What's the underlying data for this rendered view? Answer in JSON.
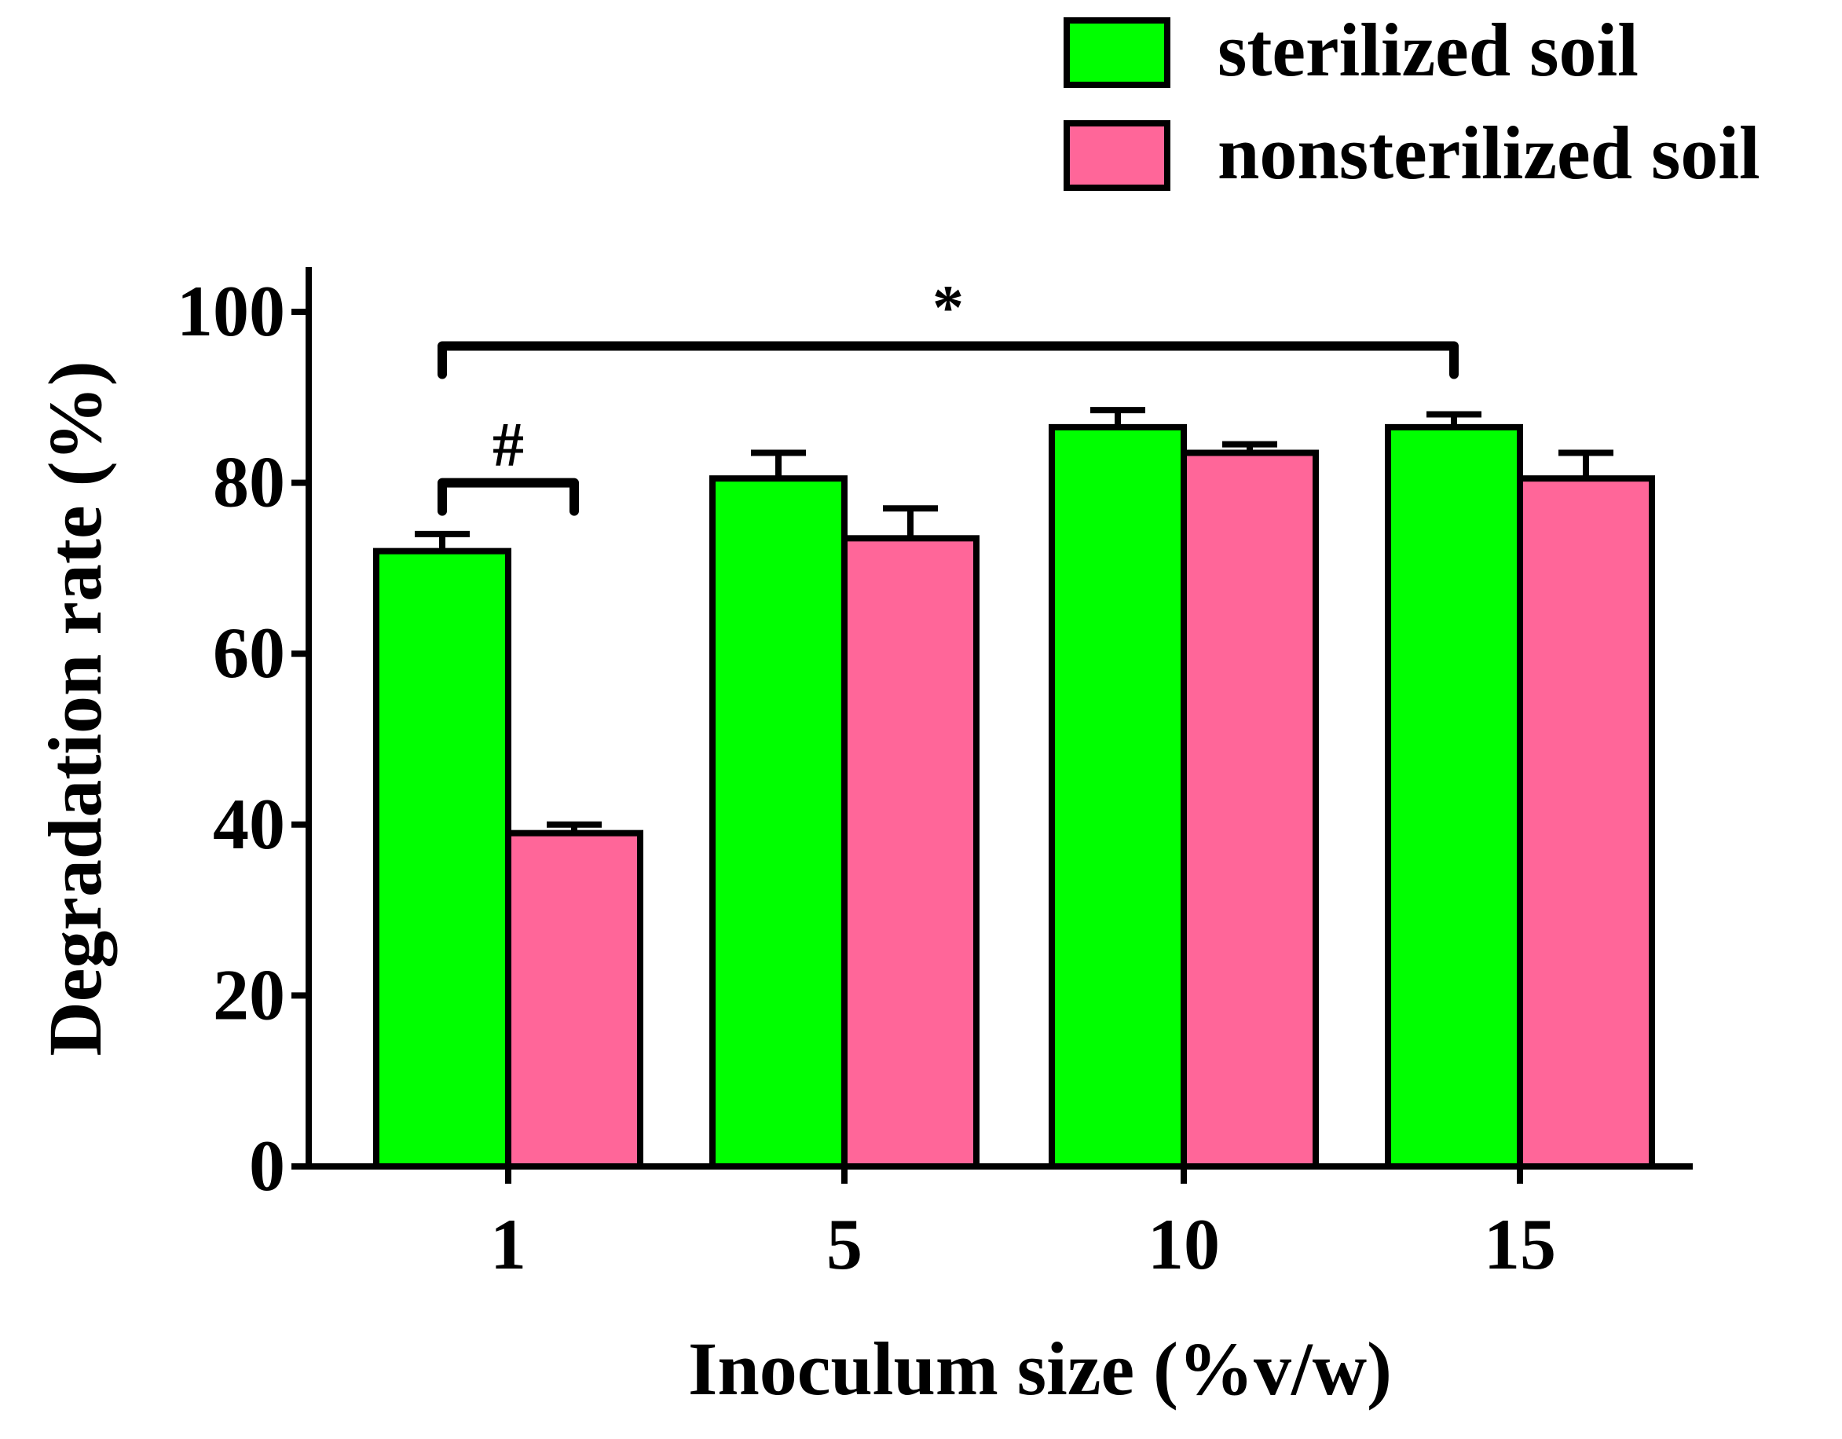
{
  "chart_data": {
    "type": "bar",
    "title": "",
    "xlabel": "Inoculum size (%v/w)",
    "ylabel": "Degradation rate (%)",
    "categories": [
      "1",
      "5",
      "10",
      "15"
    ],
    "ylim": [
      0,
      100
    ],
    "yticks": [
      0,
      20,
      40,
      60,
      80,
      100
    ],
    "grid": false,
    "legend_position": "top-right",
    "series": [
      {
        "name": "sterilized soil",
        "color": "#00ff00",
        "values": [
          72,
          80.5,
          86.5,
          86.5
        ],
        "errors": [
          2.0,
          3.0,
          2.0,
          1.5
        ]
      },
      {
        "name": "nonsterilized soil",
        "color": "#ff6699",
        "values": [
          39,
          73.5,
          83.5,
          80.5
        ],
        "errors": [
          1.0,
          3.5,
          1.0,
          3.0
        ]
      }
    ],
    "annotations": [
      {
        "label": "*",
        "from_category": "1",
        "to_category": "15",
        "series": "sterilized soil",
        "value": 96
      },
      {
        "label": "#",
        "from_category": "1",
        "to_category": "1",
        "series": "sterilized soil",
        "to_series": "nonsterilized soil",
        "value": 80
      }
    ]
  }
}
